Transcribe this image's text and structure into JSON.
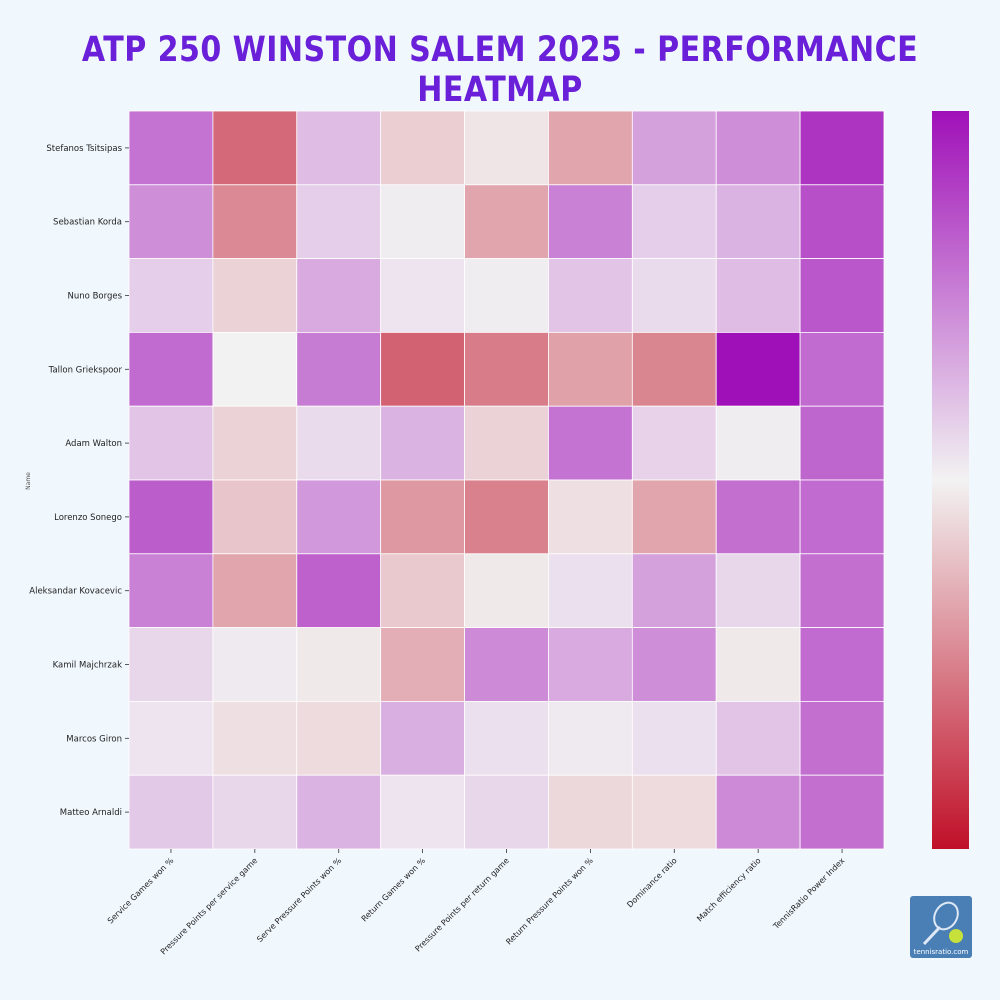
{
  "title": "ATP 250 WINSTON SALEM 2025 - PERFORMANCE HEATMAP",
  "logo_text": "tennisratio.com",
  "chart_data": {
    "type": "heatmap",
    "ylabel": "Name",
    "rows": [
      "Stefanos Tsitsipas",
      "Sebastian Korda",
      "Nuno Borges",
      "Tallon Griekspoor",
      "Adam Walton",
      "Lorenzo Sonego",
      "Aleksandar Kovacevic",
      "Kamil Majchrzak",
      "Marcos Giron",
      "Matteo Arnaldi"
    ],
    "columns": [
      "Service Games won %",
      "Pressure Points per service game",
      "Serve Pressure Points won %",
      "Return Games won %",
      "Pressure Points per return game",
      "Return Pressure Points won %",
      "Dominance ratio",
      "Match efficiency ratio",
      "TennisRatio Power Index"
    ],
    "color_scale": {
      "low": "#c01028",
      "mid": "#f2f2f2",
      "high": "#a010b8"
    },
    "value_range": [
      0,
      1
    ],
    "values": [
      [
        0.78,
        0.2,
        0.62,
        0.42,
        0.47,
        0.33,
        0.68,
        0.72,
        0.92
      ],
      [
        0.72,
        0.27,
        0.58,
        0.51,
        0.33,
        0.75,
        0.58,
        0.64,
        0.86
      ],
      [
        0.58,
        0.43,
        0.66,
        0.53,
        0.51,
        0.6,
        0.55,
        0.62,
        0.84
      ],
      [
        0.8,
        0.5,
        0.76,
        0.18,
        0.24,
        0.32,
        0.26,
        1.0,
        0.8
      ],
      [
        0.6,
        0.43,
        0.55,
        0.64,
        0.43,
        0.78,
        0.57,
        0.51,
        0.81
      ],
      [
        0.83,
        0.4,
        0.7,
        0.3,
        0.25,
        0.46,
        0.33,
        0.79,
        0.8
      ],
      [
        0.75,
        0.33,
        0.82,
        0.41,
        0.48,
        0.54,
        0.68,
        0.56,
        0.79
      ],
      [
        0.56,
        0.52,
        0.48,
        0.35,
        0.73,
        0.66,
        0.72,
        0.48,
        0.8
      ],
      [
        0.53,
        0.46,
        0.45,
        0.65,
        0.54,
        0.52,
        0.54,
        0.6,
        0.79
      ],
      [
        0.59,
        0.56,
        0.64,
        0.53,
        0.56,
        0.44,
        0.45,
        0.73,
        0.79
      ]
    ]
  }
}
